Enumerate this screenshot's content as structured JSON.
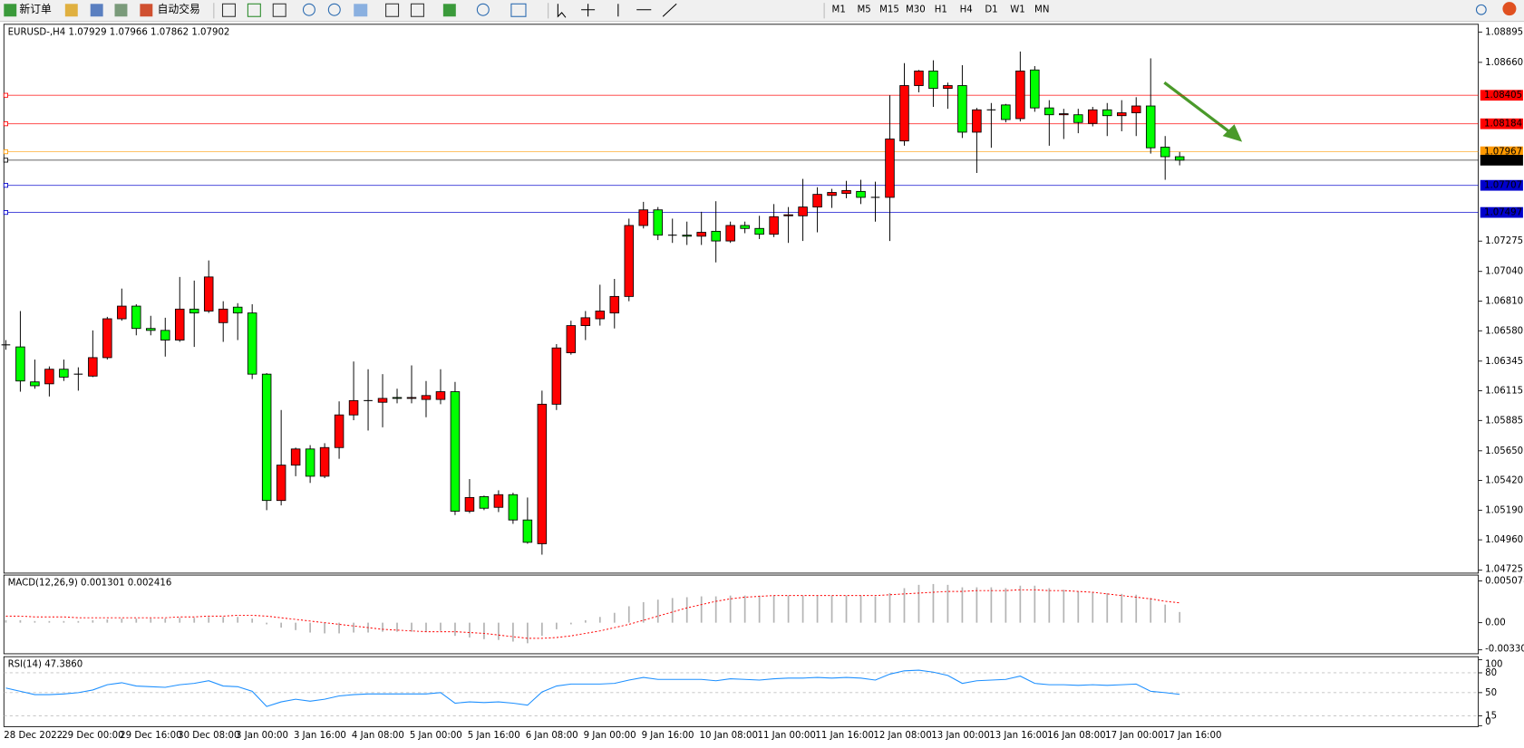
{
  "toolbar": {
    "new_order": "新订单",
    "auto_trading": "自动交易",
    "timeframes": [
      "M1",
      "M5",
      "M15",
      "M30",
      "H1",
      "H4",
      "D1",
      "W1",
      "MN"
    ]
  },
  "chart_data": [
    {
      "type": "candlestick",
      "title": "EURUSD-,H4  1.07929 1.07966 1.07862 1.07902",
      "up_color": "#ff0000",
      "down_color": "#00ff00",
      "wick_color": "#000000",
      "grid": false,
      "categories": [
        "28 Dec 2022",
        null,
        null,
        null,
        "29 Dec 00:00",
        null,
        null,
        null,
        "29 Dec 16:00",
        null,
        null,
        null,
        "30 Dec 08:00",
        null,
        null,
        null,
        "3 Jan 00:00",
        null,
        null,
        null,
        "3 Jan 16:00",
        null,
        null,
        null,
        "4 Jan 08:00",
        null,
        null,
        null,
        "5 Jan 00:00",
        null,
        null,
        null,
        "5 Jan 16:00",
        null,
        null,
        null,
        "6 Jan 08:00",
        null,
        null,
        null,
        "9 Jan 00:00",
        null,
        null,
        null,
        "9 Jan 16:00",
        null,
        null,
        null,
        "10 Jan 08:00",
        null,
        null,
        null,
        "11 Jan 00:00",
        null,
        null,
        null,
        "11 Jan 16:00",
        null,
        null,
        null,
        "12 Jan 08:00",
        null,
        null,
        null,
        "13 Jan 00:00",
        null,
        null,
        null,
        "13 Jan 16:00",
        null,
        null,
        null,
        "16 Jan 08:00",
        null,
        null,
        null,
        "17 Jan 00:00",
        null,
        null,
        null,
        "17 Jan 16:00",
        null
      ],
      "open": [
        1.06471,
        1.06455,
        1.06184,
        1.06169,
        1.06282,
        1.06244,
        1.06229,
        1.06372,
        1.06673,
        1.06771,
        1.06598,
        1.06583,
        1.06508,
        1.06748,
        1.06733,
        1.06643,
        1.06763,
        1.06718,
        1.06244,
        1.05265,
        1.05539,
        1.05664,
        1.05453,
        1.05675,
        1.05928,
        1.06039,
        1.06026,
        1.06063,
        1.06056,
        1.06048,
        1.06048,
        1.06108,
        1.05182,
        1.05295,
        1.05212,
        1.0531,
        1.05114,
        1.0493,
        1.06011,
        1.0641,
        1.0662,
        1.06673,
        1.06718,
        1.06846,
        1.07396,
        1.07517,
        1.07321,
        1.07321,
        1.07313,
        1.07351,
        1.07276,
        1.07396,
        1.07373,
        1.07328,
        1.07471,
        1.07471,
        1.07539,
        1.07629,
        1.07644,
        1.0766,
        1.07614,
        1.07614,
        1.08051,
        1.0848,
        1.08593,
        1.08458,
        1.0848,
        1.08119,
        1.08292,
        1.0833,
        1.08224,
        1.08601,
        1.08307,
        1.08254,
        1.08254,
        1.08187,
        1.08292,
        1.08247,
        1.08269,
        1.08322,
        1.08003,
        1.07929
      ],
      "high": [
        1.06508,
        1.06733,
        1.06357,
        1.06304,
        1.06357,
        1.06297,
        1.06583,
        1.06688,
        1.06907,
        1.06786,
        1.06696,
        1.06681,
        1.06997,
        1.06969,
        1.07125,
        1.06809,
        1.06794,
        1.06786,
        1.06252,
        1.05966,
        1.05675,
        1.05694,
        1.05709,
        1.06033,
        1.06342,
        1.06282,
        1.06244,
        1.06131,
        1.06312,
        1.06191,
        1.06282,
        1.06184,
        1.05431,
        1.05303,
        1.05344,
        1.05325,
        1.05288,
        1.06116,
        1.06477,
        1.06658,
        1.06733,
        1.06937,
        1.06982,
        1.07449,
        1.07579,
        1.07539,
        1.07449,
        1.07426,
        1.07502,
        1.07584,
        1.07426,
        1.07426,
        1.07471,
        1.07562,
        1.07539,
        1.07757,
        1.07692,
        1.0768,
        1.07742,
        1.0775,
        1.07735,
        1.08405,
        1.08654,
        1.08601,
        1.08676,
        1.08503,
        1.08638,
        1.08307,
        1.08345,
        1.08338,
        1.08744,
        1.08631,
        1.08367,
        1.083,
        1.083,
        1.08315,
        1.08345,
        1.08367,
        1.0839,
        1.08691,
        1.08089,
        1.07966
      ],
      "low": [
        1.06433,
        1.06108,
        1.06131,
        1.06071,
        1.06191,
        1.06116,
        1.06221,
        1.06357,
        1.06658,
        1.06545,
        1.06545,
        1.0638,
        1.06494,
        1.06455,
        1.06718,
        1.06494,
        1.06508,
        1.06206,
        1.0519,
        1.05227,
        1.05453,
        1.05401,
        1.05438,
        1.05588,
        1.05887,
        1.05807,
        1.05832,
        1.06018,
        1.06018,
        1.0591,
        1.06011,
        1.05152,
        1.05167,
        1.0519,
        1.05175,
        1.05084,
        1.0493,
        1.04845,
        1.05966,
        1.06395,
        1.06508,
        1.0662,
        1.06598,
        1.06809,
        1.07373,
        1.07283,
        1.07261,
        1.07245,
        1.07245,
        1.0711,
        1.07261,
        1.07336,
        1.07291,
        1.07306,
        1.07261,
        1.07276,
        1.07343,
        1.07532,
        1.07607,
        1.07562,
        1.07426,
        1.07276,
        1.08014,
        1.08428,
        1.08315,
        1.083,
        1.08074,
        1.07803,
        1.07998,
        1.08195,
        1.08202,
        1.08277,
        1.08014,
        1.08066,
        1.08111,
        1.08164,
        1.08089,
        1.08126,
        1.08089,
        1.07953,
        1.0775,
        1.07862
      ],
      "close": [
        1.06475,
        1.06191,
        1.06154,
        1.06282,
        1.06221,
        1.06244,
        1.06372,
        1.06673,
        1.06771,
        1.06598,
        1.06583,
        1.06508,
        1.06748,
        1.06718,
        1.06997,
        1.06748,
        1.06718,
        1.06244,
        1.05265,
        1.05539,
        1.05664,
        1.05453,
        1.05675,
        1.05928,
        1.06039,
        1.06033,
        1.06056,
        1.06056,
        1.06063,
        1.06078,
        1.06108,
        1.05182,
        1.05288,
        1.05205,
        1.0531,
        1.05114,
        1.04941,
        1.06011,
        1.06447,
        1.0662,
        1.06681,
        1.06733,
        1.06846,
        1.07396,
        1.07517,
        1.07321,
        1.07321,
        1.07313,
        1.07343,
        1.07276,
        1.07396,
        1.07373,
        1.07328,
        1.07464,
        1.07479,
        1.07539,
        1.07637,
        1.07652,
        1.07667,
        1.07614,
        1.07614,
        1.08066,
        1.0848,
        1.08593,
        1.08458,
        1.0848,
        1.08119,
        1.08292,
        1.08292,
        1.08217,
        1.08593,
        1.08307,
        1.08254,
        1.08262,
        1.08194,
        1.08292,
        1.08247,
        1.08269,
        1.08322,
        1.07998,
        1.07929,
        1.07902
      ],
      "ylim": [
        1.04702,
        1.08955
      ],
      "yticks": [
        1.08895,
        {
          "value": 1.0866,
          "label": "1.08660"
        },
        1.07275,
        {
          "value": 1.0704,
          "label": "1.07040"
        },
        {
          "value": 1.0681,
          "label": "1.06810"
        },
        {
          "value": 1.0658,
          "label": "1.06580"
        },
        1.06345,
        1.06115,
        1.05885,
        {
          "value": 1.0565,
          "label": "1.05650"
        },
        {
          "value": 1.0542,
          "label": "1.05420"
        },
        {
          "value": 1.0519,
          "label": "1.05190"
        },
        {
          "value": 1.0496,
          "label": "1.04960"
        },
        1.04725
      ],
      "levels": [
        {
          "value": 1.08405,
          "color": "#ff0000"
        },
        {
          "value": 1.08184,
          "color": "#ff0000"
        },
        {
          "value": 1.07967,
          "color": "#ff9900"
        },
        {
          "value": 1.07902,
          "color": "#000000"
        },
        {
          "value": 1.07707,
          "color": "#0000cc"
        },
        {
          "value": 1.07497,
          "color": "#0000cc"
        }
      ]
    },
    {
      "type": "macd",
      "title": "MACD(12,26,9) 0.001301 0.002416",
      "series": [
        {
          "kind": "bar",
          "color": "#b4b4b4",
          "values": [
            0.0003,
            0.0003,
            0.0002,
            0.0002,
            0.0002,
            0.0002,
            0.0003,
            0.0004,
            0.0005,
            0.0005,
            0.0005,
            0.0005,
            0.0006,
            0.0006,
            0.0007,
            0.0007,
            0.0007,
            0.0005,
            -0.0002,
            -0.0006,
            -0.0009,
            -0.0012,
            -0.0013,
            -0.0013,
            -0.0012,
            -0.0012,
            -0.0011,
            -0.0011,
            -0.0011,
            -0.0011,
            -0.001,
            -0.0016,
            -0.0018,
            -0.002,
            -0.0021,
            -0.0023,
            -0.0025,
            -0.0016,
            -0.0008,
            -0.0002,
            0.0003,
            0.0007,
            0.0012,
            0.002,
            0.0025,
            0.0028,
            0.003,
            0.0031,
            0.0032,
            0.0032,
            0.0033,
            0.0033,
            0.0033,
            0.0033,
            0.0033,
            0.0033,
            0.0033,
            0.0033,
            0.0033,
            0.0033,
            0.0032,
            0.0036,
            0.0042,
            0.0046,
            0.0047,
            0.0046,
            0.0043,
            0.0043,
            0.0043,
            0.0042,
            0.0045,
            0.0045,
            0.0042,
            0.004,
            0.0038,
            0.0037,
            0.0036,
            0.0035,
            0.0034,
            0.003,
            0.0022,
            0.001301
          ]
        },
        {
          "kind": "line",
          "color": "#ff0000",
          "dashed": true,
          "values": [
            0.0008,
            0.0008,
            0.0007,
            0.0007,
            0.0007,
            0.0006,
            0.0006,
            0.0006,
            0.0006,
            0.0006,
            0.0006,
            0.0006,
            0.0007,
            0.0007,
            0.0008,
            0.0008,
            0.0009,
            0.0009,
            0.0008,
            0.0006,
            0.0004,
            0.0002,
            0.0,
            -0.0002,
            -0.0004,
            -0.0006,
            -0.0008,
            -0.0009,
            -0.001,
            -0.0011,
            -0.0011,
            -0.0011,
            -0.0012,
            -0.0013,
            -0.0015,
            -0.0017,
            -0.0019,
            -0.0019,
            -0.0018,
            -0.0016,
            -0.0013,
            -0.001,
            -0.0006,
            -0.0002,
            0.0003,
            0.0008,
            0.0013,
            0.0018,
            0.0022,
            0.0026,
            0.0029,
            0.0031,
            0.0032,
            0.0033,
            0.0033,
            0.0033,
            0.0033,
            0.0033,
            0.0033,
            0.0033,
            0.0033,
            0.0034,
            0.0035,
            0.0036,
            0.0037,
            0.0038,
            0.0038,
            0.0039,
            0.0039,
            0.0039,
            0.004,
            0.004,
            0.0039,
            0.0039,
            0.0038,
            0.0037,
            0.0035,
            0.0033,
            0.0031,
            0.0029,
            0.0026,
            0.002416
          ]
        }
      ],
      "ylim": [
        -0.00366,
        0.00567
      ],
      "yticks": [
        0.005078,
        {
          "value": 0,
          "label": "0.00"
        },
        -0.003301
      ]
    },
    {
      "type": "line",
      "title": "RSI(14) 47.3860",
      "color": "#1e90ff",
      "values": [
        57,
        52,
        47,
        47,
        48,
        50,
        54,
        62,
        65,
        60,
        59,
        58,
        62,
        64,
        68,
        60,
        59,
        52,
        29,
        36,
        40,
        37,
        40,
        45,
        47,
        48,
        48,
        48,
        48,
        48,
        50,
        34,
        36,
        35,
        36,
        34,
        31,
        51,
        60,
        63,
        63,
        63,
        64,
        69,
        73,
        70,
        70,
        70,
        70,
        68,
        71,
        70,
        69,
        71,
        72,
        72,
        73,
        72,
        73,
        72,
        69,
        78,
        83,
        84,
        81,
        76,
        64,
        68,
        69,
        70,
        75,
        64,
        62,
        62,
        61,
        62,
        61,
        62,
        63,
        52,
        50,
        47.386
      ],
      "ylim": [
        0,
        100
      ],
      "yticks": [
        100,
        80,
        50,
        15,
        0
      ]
    }
  ]
}
